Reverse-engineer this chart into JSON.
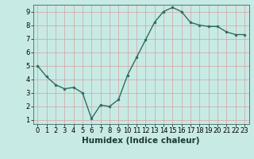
{
  "x": [
    0,
    1,
    2,
    3,
    4,
    5,
    6,
    7,
    8,
    9,
    10,
    11,
    12,
    13,
    14,
    15,
    16,
    17,
    18,
    19,
    20,
    21,
    22,
    23
  ],
  "y": [
    5.0,
    4.2,
    3.6,
    3.3,
    3.4,
    3.0,
    1.1,
    2.1,
    2.0,
    2.5,
    4.3,
    5.6,
    6.9,
    8.2,
    9.0,
    9.3,
    9.0,
    8.2,
    8.0,
    7.9,
    7.9,
    7.5,
    7.3,
    7.3
  ],
  "xlabel": "Humidex (Indice chaleur)",
  "ylim_min": 0.7,
  "ylim_max": 9.5,
  "xlim_min": -0.5,
  "xlim_max": 23.5,
  "bg_color": "#c8eae4",
  "grid_color": "#b0c8c4",
  "line_color": "#2a6e62",
  "marker_color": "#2a6e62",
  "yticks": [
    1,
    2,
    3,
    4,
    5,
    6,
    7,
    8,
    9
  ],
  "xticks": [
    0,
    1,
    2,
    3,
    4,
    5,
    6,
    7,
    8,
    9,
    10,
    11,
    12,
    13,
    14,
    15,
    16,
    17,
    18,
    19,
    20,
    21,
    22,
    23
  ],
  "xlabel_fontsize": 7.5,
  "tick_fontsize": 6.0,
  "linewidth": 1.0,
  "markersize": 2.0
}
